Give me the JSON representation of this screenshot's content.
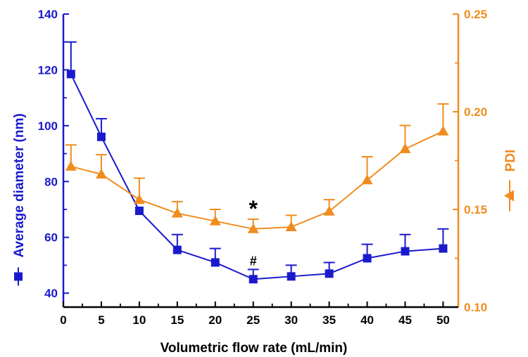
{
  "chart_data": {
    "type": "line",
    "xlabel": "Volumetric  flow  rate (mL/min)",
    "x_ticks": [
      0,
      5,
      10,
      15,
      20,
      25,
      30,
      35,
      40,
      45,
      50
    ],
    "xlim": [
      0,
      52
    ],
    "y_left": {
      "label": "Average diameter (nm)",
      "ticks": [
        40,
        60,
        80,
        100,
        120,
        140
      ],
      "lim": [
        35,
        140
      ],
      "color": "#1a1acc"
    },
    "y_right": {
      "label": "PDI",
      "ticks": [
        "0.10",
        "0.15",
        "0.20",
        "0.25"
      ],
      "tick_values": [
        0.1,
        0.15,
        0.2,
        0.25
      ],
      "lim": [
        0.1,
        0.25
      ],
      "color": "#f08c1e"
    },
    "series": [
      {
        "name": "Average diameter",
        "axis": "left",
        "marker": "square",
        "color": "#1a1acc",
        "x": [
          1,
          5,
          10,
          15,
          20,
          25,
          30,
          35,
          40,
          45,
          50
        ],
        "values": [
          118.5,
          96,
          69.5,
          55.5,
          51,
          45,
          46,
          47,
          52.5,
          55,
          56
        ],
        "error": [
          11.5,
          6.5,
          0,
          5.5,
          5,
          3.5,
          4,
          4,
          5,
          6,
          7
        ]
      },
      {
        "name": "PDI",
        "axis": "right",
        "marker": "triangle",
        "color": "#f08c1e",
        "x": [
          1,
          5,
          10,
          15,
          20,
          25,
          30,
          35,
          40,
          45,
          50
        ],
        "values": [
          0.172,
          0.168,
          0.155,
          0.148,
          0.144,
          0.14,
          0.141,
          0.149,
          0.165,
          0.181,
          0.19
        ],
        "error": [
          0.011,
          0.01,
          0.011,
          0.006,
          0.006,
          0.005,
          0.006,
          0.006,
          0.012,
          0.012,
          0.014
        ]
      }
    ],
    "annotations": [
      {
        "text": "*",
        "x": 25,
        "near_series": "PDI"
      },
      {
        "text": "#",
        "x": 25,
        "near_series": "Average diameter"
      }
    ]
  }
}
